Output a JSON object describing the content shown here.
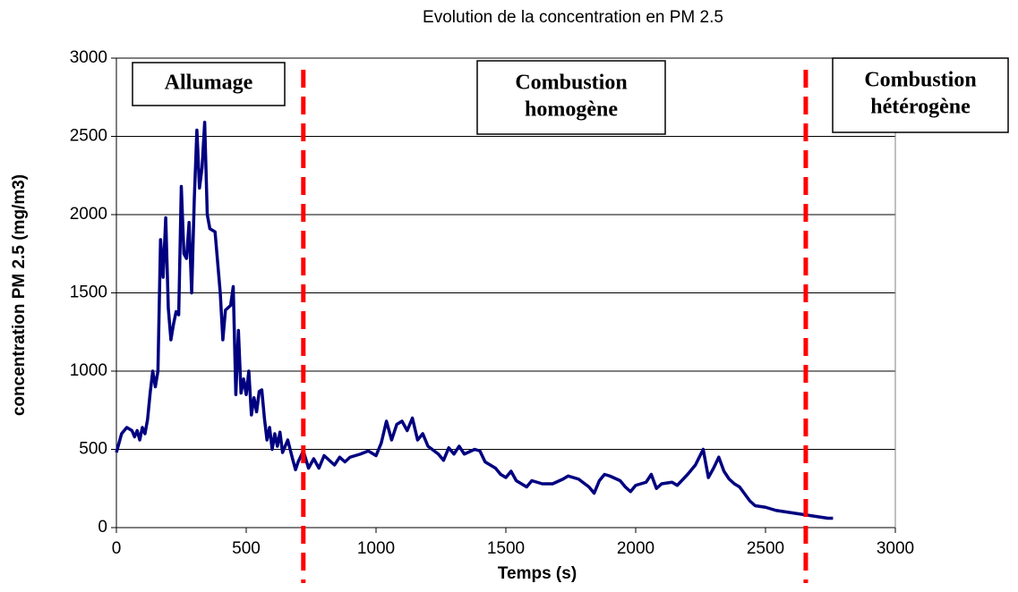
{
  "chart_data": {
    "type": "line",
    "title": "Evolution de la concentration en PM 2.5",
    "x_label": "Temps (s)",
    "y_label": "concentration PM 2.5 (mg/m3)",
    "xlim": [
      0,
      3000
    ],
    "xticks": [
      0,
      500,
      1000,
      1500,
      2000,
      2500,
      3000
    ],
    "ylim": [
      0,
      3000
    ],
    "yticks": [
      0,
      500,
      1000,
      1500,
      2000,
      2500,
      3000
    ],
    "grid": true,
    "vlines": {
      "color": "#ff0000",
      "values": [
        720,
        2655
      ]
    },
    "annotations": [
      [
        "Allumage"
      ],
      [
        "Combustion",
        "homogène"
      ],
      [
        "Combustion",
        "hétérogène"
      ]
    ],
    "series": [
      {
        "color": "#000080",
        "x": [
          0,
          20,
          40,
          60,
          70,
          80,
          90,
          100,
          110,
          120,
          130,
          140,
          150,
          160,
          170,
          180,
          190,
          200,
          210,
          220,
          230,
          240,
          250,
          260,
          270,
          280,
          290,
          300,
          310,
          320,
          330,
          340,
          350,
          360,
          380,
          400,
          410,
          420,
          440,
          450,
          460,
          470,
          480,
          490,
          500,
          510,
          520,
          530,
          540,
          550,
          560,
          570,
          580,
          590,
          600,
          610,
          620,
          630,
          640,
          660,
          680,
          690,
          700,
          720,
          740,
          760,
          780,
          800,
          840,
          860,
          880,
          900,
          940,
          970,
          1000,
          1020,
          1040,
          1060,
          1080,
          1100,
          1120,
          1140,
          1160,
          1180,
          1200,
          1240,
          1260,
          1280,
          1300,
          1320,
          1340,
          1380,
          1400,
          1420,
          1460,
          1480,
          1500,
          1520,
          1540,
          1580,
          1600,
          1640,
          1680,
          1720,
          1740,
          1780,
          1820,
          1840,
          1860,
          1880,
          1900,
          1940,
          1960,
          1980,
          2000,
          2040,
          2060,
          2080,
          2100,
          2140,
          2160,
          2200,
          2230,
          2260,
          2280,
          2300,
          2320,
          2340,
          2360,
          2380,
          2400,
          2440,
          2460,
          2500,
          2540,
          2580,
          2620,
          2660,
          2700,
          2740,
          2760
        ],
        "values": [
          480,
          600,
          640,
          620,
          580,
          620,
          560,
          640,
          600,
          690,
          860,
          1000,
          900,
          1000,
          1840,
          1600,
          1980,
          1400,
          1200,
          1300,
          1380,
          1360,
          2180,
          1750,
          1720,
          1950,
          1500,
          2100,
          2540,
          2170,
          2300,
          2590,
          2000,
          1910,
          1890,
          1500,
          1200,
          1390,
          1420,
          1540,
          850,
          1260,
          860,
          950,
          850,
          1000,
          720,
          830,
          740,
          870,
          880,
          700,
          560,
          640,
          500,
          600,
          520,
          610,
          480,
          560,
          430,
          370,
          420,
          490,
          380,
          440,
          380,
          460,
          400,
          450,
          420,
          450,
          470,
          490,
          460,
          540,
          680,
          560,
          660,
          680,
          620,
          700,
          560,
          600,
          520,
          470,
          430,
          510,
          470,
          520,
          470,
          500,
          490,
          420,
          380,
          340,
          320,
          360,
          300,
          260,
          300,
          280,
          280,
          310,
          330,
          310,
          260,
          220,
          300,
          340,
          330,
          300,
          260,
          230,
          270,
          290,
          340,
          250,
          280,
          290,
          270,
          340,
          400,
          500,
          320,
          380,
          450,
          360,
          310,
          280,
          260,
          170,
          140,
          130,
          110,
          100,
          90,
          80,
          70,
          60,
          60
        ]
      }
    ]
  }
}
